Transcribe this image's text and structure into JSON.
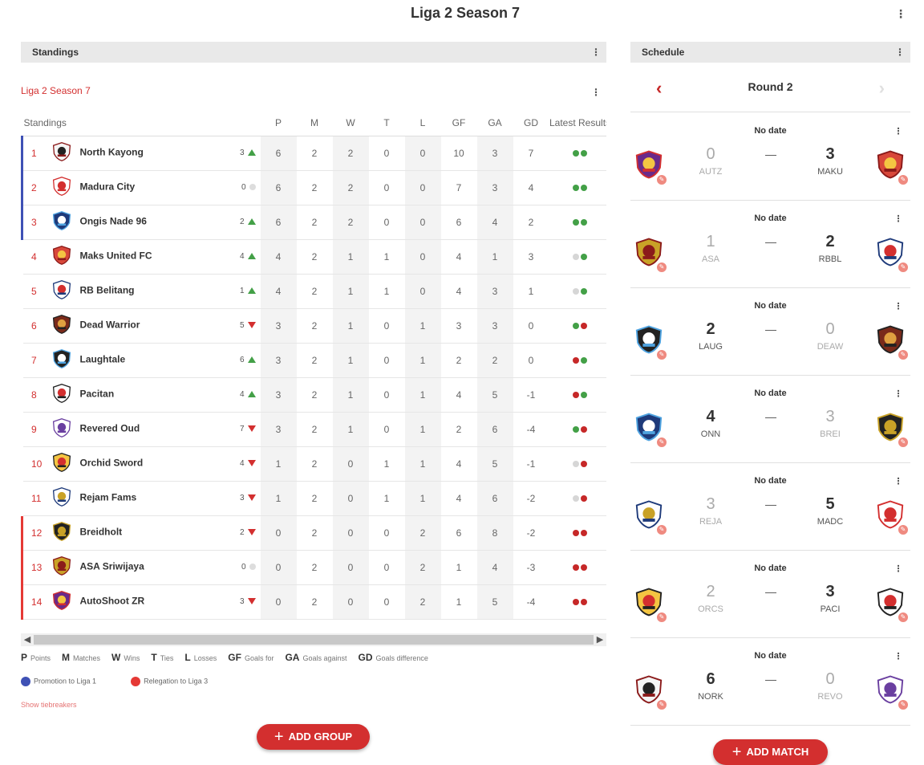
{
  "page": {
    "title": "Liga 2 Season 7"
  },
  "standings_panel": {
    "header": "Standings",
    "group_title": "Liga 2 Season 7"
  },
  "table": {
    "columns": [
      "Standings",
      "P",
      "M",
      "W",
      "T",
      "L",
      "GF",
      "GA",
      "GD",
      "Latest Results"
    ],
    "rows": [
      {
        "pos": "1",
        "team": "North Kayong",
        "logo": "north-kayong-logo",
        "zone": "promo",
        "prev": "3",
        "trend": "up",
        "P": "6",
        "M": "2",
        "W": "2",
        "T": "0",
        "L": "0",
        "GF": "10",
        "GA": "3",
        "GD": "7",
        "results": [
          "W",
          "W"
        ]
      },
      {
        "pos": "2",
        "team": "Madura City",
        "logo": "madura-city-logo",
        "zone": "promo",
        "prev": "0",
        "trend": "none",
        "P": "6",
        "M": "2",
        "W": "2",
        "T": "0",
        "L": "0",
        "GF": "7",
        "GA": "3",
        "GD": "4",
        "results": [
          "W",
          "W"
        ]
      },
      {
        "pos": "3",
        "team": "Ongis Nade 96",
        "logo": "ongis-nade-logo",
        "zone": "promo",
        "prev": "2",
        "trend": "up",
        "P": "6",
        "M": "2",
        "W": "2",
        "T": "0",
        "L": "0",
        "GF": "6",
        "GA": "4",
        "GD": "2",
        "results": [
          "W",
          "W"
        ]
      },
      {
        "pos": "4",
        "team": "Maks United FC",
        "logo": "maks-united-logo",
        "zone": "",
        "prev": "4",
        "trend": "up",
        "P": "4",
        "M": "2",
        "W": "1",
        "T": "1",
        "L": "0",
        "GF": "4",
        "GA": "1",
        "GD": "3",
        "results": [
          "T",
          "W"
        ]
      },
      {
        "pos": "5",
        "team": "RB Belitang",
        "logo": "rb-belitang-logo",
        "zone": "",
        "prev": "1",
        "trend": "up",
        "P": "4",
        "M": "2",
        "W": "1",
        "T": "1",
        "L": "0",
        "GF": "4",
        "GA": "3",
        "GD": "1",
        "results": [
          "T",
          "W"
        ]
      },
      {
        "pos": "6",
        "team": "Dead Warrior",
        "logo": "dead-warrior-logo",
        "zone": "",
        "prev": "5",
        "trend": "down",
        "P": "3",
        "M": "2",
        "W": "1",
        "T": "0",
        "L": "1",
        "GF": "3",
        "GA": "3",
        "GD": "0",
        "results": [
          "W",
          "L"
        ]
      },
      {
        "pos": "7",
        "team": "Laughtale",
        "logo": "laughtale-logo",
        "zone": "",
        "prev": "6",
        "trend": "up",
        "P": "3",
        "M": "2",
        "W": "1",
        "T": "0",
        "L": "1",
        "GF": "2",
        "GA": "2",
        "GD": "0",
        "results": [
          "L",
          "W"
        ]
      },
      {
        "pos": "8",
        "team": "Pacitan",
        "logo": "pacitan-logo",
        "zone": "",
        "prev": "4",
        "trend": "up",
        "P": "3",
        "M": "2",
        "W": "1",
        "T": "0",
        "L": "1",
        "GF": "4",
        "GA": "5",
        "GD": "-1",
        "results": [
          "L",
          "W"
        ]
      },
      {
        "pos": "9",
        "team": "Revered Oud",
        "logo": "revered-oud-logo",
        "zone": "",
        "prev": "7",
        "trend": "down",
        "P": "3",
        "M": "2",
        "W": "1",
        "T": "0",
        "L": "1",
        "GF": "2",
        "GA": "6",
        "GD": "-4",
        "results": [
          "W",
          "L"
        ]
      },
      {
        "pos": "10",
        "team": "Orchid Sword",
        "logo": "orchid-sword-logo",
        "zone": "",
        "prev": "4",
        "trend": "down",
        "P": "1",
        "M": "2",
        "W": "0",
        "T": "1",
        "L": "1",
        "GF": "4",
        "GA": "5",
        "GD": "-1",
        "results": [
          "T",
          "L"
        ]
      },
      {
        "pos": "11",
        "team": "Rejam Fams",
        "logo": "rejam-fams-logo",
        "zone": "",
        "prev": "3",
        "trend": "down",
        "P": "1",
        "M": "2",
        "W": "0",
        "T": "1",
        "L": "1",
        "GF": "4",
        "GA": "6",
        "GD": "-2",
        "results": [
          "T",
          "L"
        ]
      },
      {
        "pos": "12",
        "team": "Breidholt",
        "logo": "breidholt-logo",
        "zone": "releg",
        "prev": "2",
        "trend": "down",
        "P": "0",
        "M": "2",
        "W": "0",
        "T": "0",
        "L": "2",
        "GF": "6",
        "GA": "8",
        "GD": "-2",
        "results": [
          "L",
          "L"
        ]
      },
      {
        "pos": "13",
        "team": "ASA Sriwijaya",
        "logo": "asa-sriwijaya-logo",
        "zone": "releg",
        "prev": "0",
        "trend": "none",
        "P": "0",
        "M": "2",
        "W": "0",
        "T": "0",
        "L": "2",
        "GF": "1",
        "GA": "4",
        "GD": "-3",
        "results": [
          "L",
          "L"
        ]
      },
      {
        "pos": "14",
        "team": "AutoShoot ZR",
        "logo": "autoshoot-zr-logo",
        "zone": "releg",
        "prev": "3",
        "trend": "down",
        "P": "0",
        "M": "2",
        "W": "0",
        "T": "0",
        "L": "2",
        "GF": "1",
        "GA": "5",
        "GD": "-4",
        "results": [
          "L",
          "L"
        ]
      }
    ]
  },
  "legend": {
    "abbr": [
      {
        "k": "P",
        "v": "Points"
      },
      {
        "k": "M",
        "v": "Matches"
      },
      {
        "k": "W",
        "v": "Wins"
      },
      {
        "k": "T",
        "v": "Ties"
      },
      {
        "k": "L",
        "v": "Losses"
      },
      {
        "k": "GF",
        "v": "Goals for"
      },
      {
        "k": "GA",
        "v": "Goals against"
      },
      {
        "k": "GD",
        "v": "Goals difference"
      }
    ],
    "promotion": "Promotion to Liga 1",
    "relegation": "Relegation to Liga 3",
    "promotion_color": "#3f51b5",
    "relegation_color": "#e53935",
    "tiebreakers": "Show tiebreakers"
  },
  "buttons": {
    "add_group": "ADD GROUP",
    "add_match": "ADD MATCH"
  },
  "schedule_panel": {
    "header": "Schedule",
    "round": "Round 2",
    "matches": [
      {
        "date": "No date",
        "home": "AUTZ",
        "home_score": "0",
        "away": "MAKU",
        "away_score": "3",
        "home_logo": "autoshoot-zr-logo",
        "away_logo": "maks-united-logo"
      },
      {
        "date": "No date",
        "home": "ASA",
        "home_score": "1",
        "away": "RBBL",
        "away_score": "2",
        "home_logo": "asa-sriwijaya-logo",
        "away_logo": "rb-belitang-logo"
      },
      {
        "date": "No date",
        "home": "LAUG",
        "home_score": "2",
        "away": "DEAW",
        "away_score": "0",
        "home_logo": "laughtale-logo",
        "away_logo": "dead-warrior-logo"
      },
      {
        "date": "No date",
        "home": "ONN",
        "home_score": "4",
        "away": "BREI",
        "away_score": "3",
        "home_logo": "ongis-nade-logo",
        "away_logo": "breidholt-logo"
      },
      {
        "date": "No date",
        "home": "REJA",
        "home_score": "3",
        "away": "MADC",
        "away_score": "5",
        "home_logo": "rejam-fams-logo",
        "away_logo": "madura-city-logo"
      },
      {
        "date": "No date",
        "home": "ORCS",
        "home_score": "2",
        "away": "PACI",
        "away_score": "3",
        "home_logo": "orchid-sword-logo",
        "away_logo": "pacitan-logo"
      },
      {
        "date": "No date",
        "home": "NORK",
        "home_score": "6",
        "away": "REVO",
        "away_score": "0",
        "home_logo": "north-kayong-logo",
        "away_logo": "revered-oud-logo"
      }
    ]
  },
  "colors": {
    "accent": "#d32f2f",
    "win": "#43a047",
    "loss": "#c62828",
    "tie": "#d6d6d6"
  }
}
